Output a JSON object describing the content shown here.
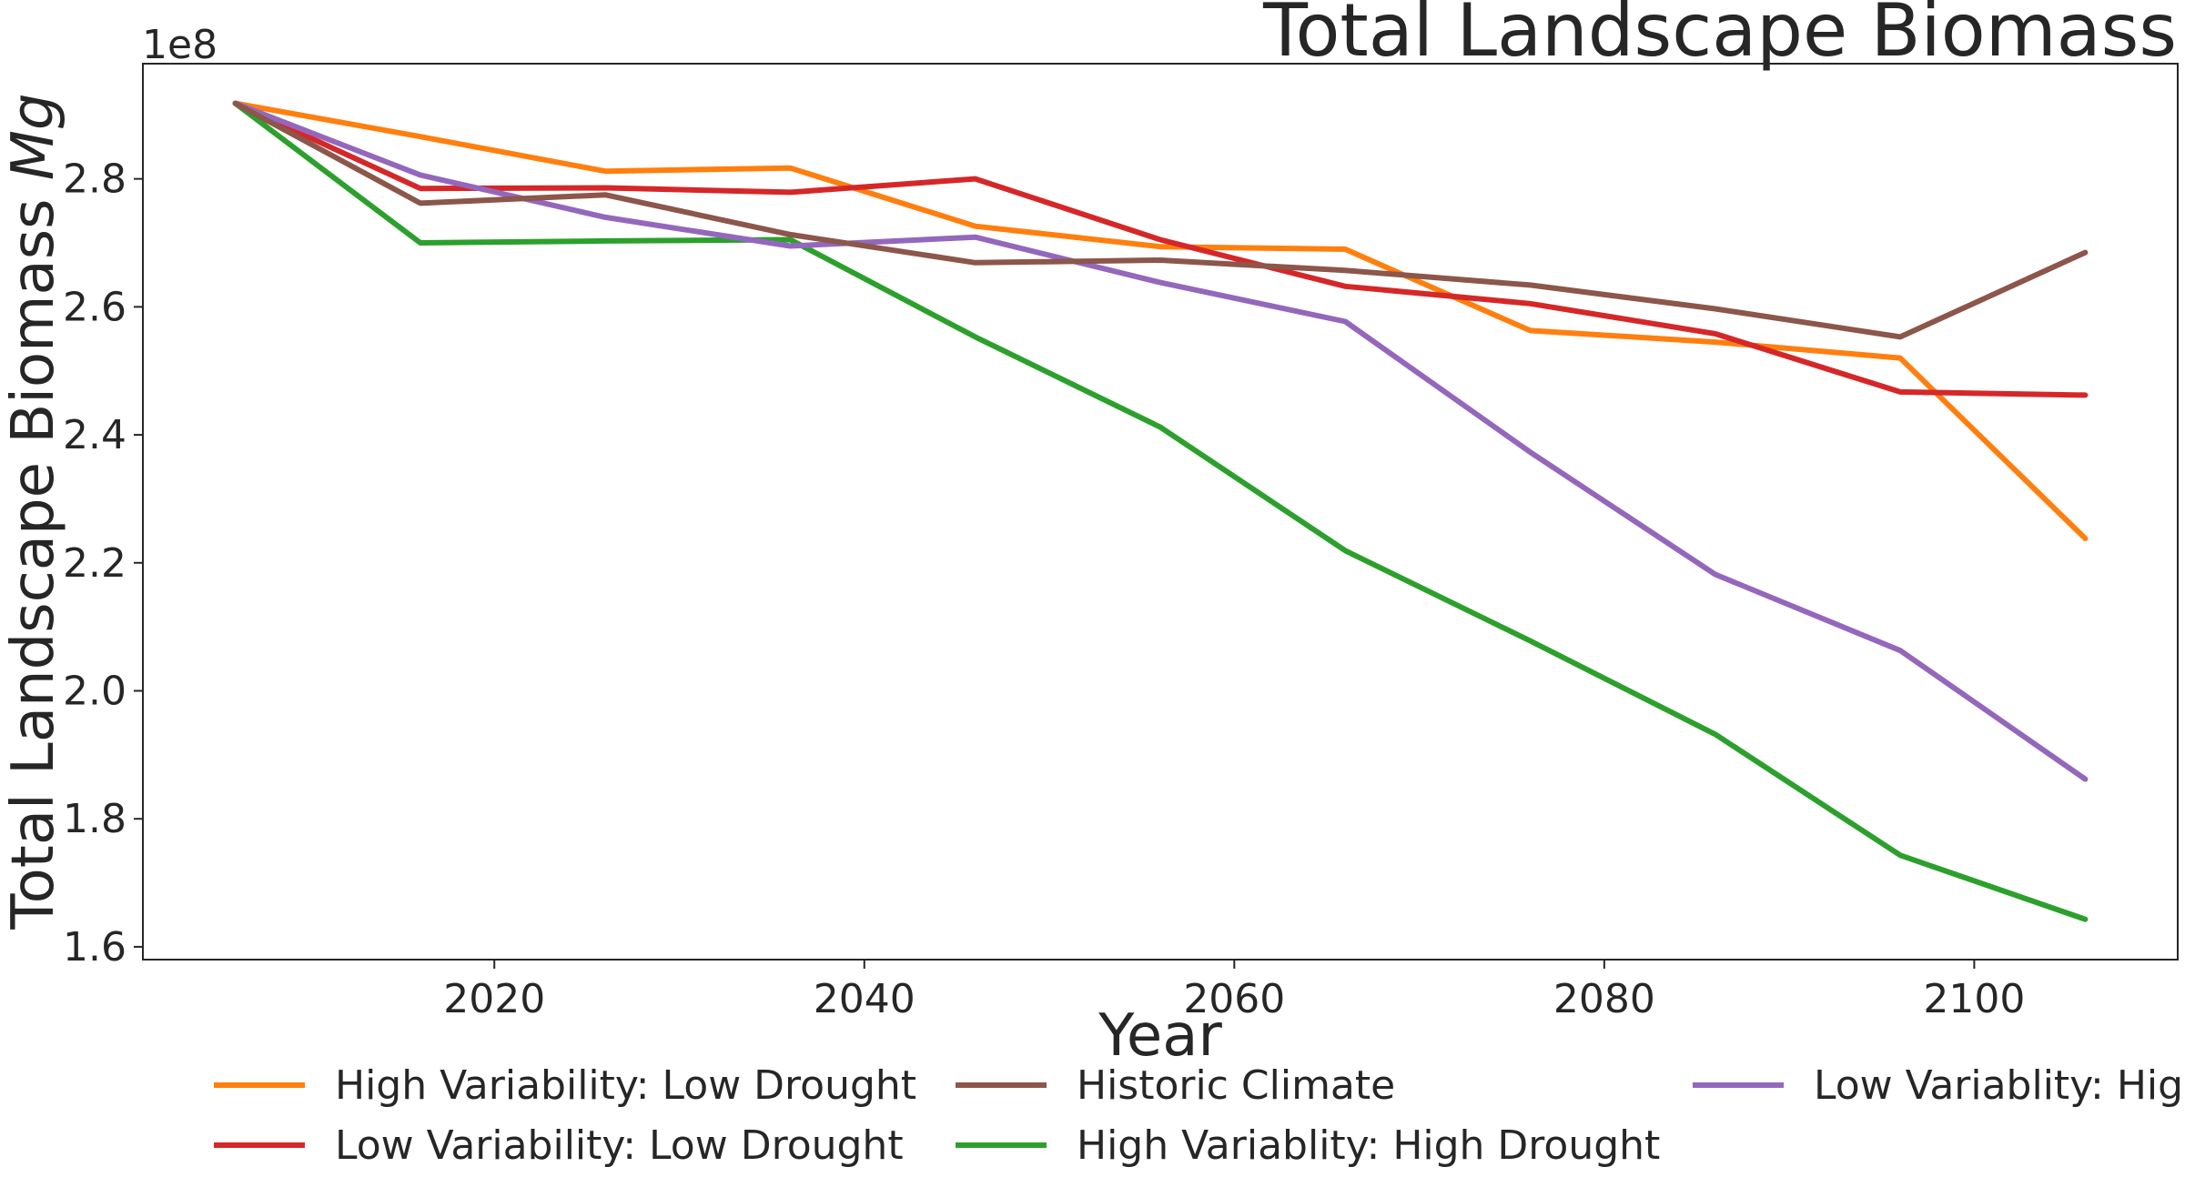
{
  "chart_data": {
    "type": "line",
    "title": "Total Landscape Biomass",
    "xlabel": "Year",
    "ylabel_main": "Total Landscape Biomass ",
    "ylabel_unit": "Mg",
    "offset_label": "1e8",
    "x": [
      2006,
      2016,
      2026,
      2036,
      2046,
      2056,
      2066,
      2076,
      2086,
      2096,
      2106
    ],
    "xlim": [
      2001,
      2111
    ],
    "ylim": [
      1.58,
      2.98
    ],
    "xticks": [
      2020,
      2040,
      2060,
      2080,
      2100
    ],
    "xtick_labels": [
      "2020",
      "2040",
      "2060",
      "2080",
      "2100"
    ],
    "yticks": [
      1.6,
      1.8,
      2.0,
      2.2,
      2.4,
      2.6,
      2.8
    ],
    "ytick_labels": [
      "1.6",
      "1.8",
      "2.0",
      "2.2",
      "2.4",
      "2.6",
      "2.8"
    ],
    "grid": false,
    "legend_position": "bottom",
    "series": [
      {
        "name": "High Variability: Low Drought",
        "color": "#ff7f0e",
        "values": [
          2.918,
          2.866,
          2.812,
          2.817,
          2.726,
          2.694,
          2.69,
          2.563,
          2.545,
          2.52,
          2.238
        ]
      },
      {
        "name": "High Variablity: High Drought",
        "color": "#2ca02c",
        "values": [
          2.918,
          2.7,
          2.703,
          2.705,
          2.553,
          2.412,
          2.219,
          2.078,
          1.932,
          1.743,
          1.643
        ]
      },
      {
        "name": "Low Variability: Low Drought",
        "color": "#d62728",
        "values": [
          2.918,
          2.785,
          2.786,
          2.779,
          2.8,
          2.705,
          2.632,
          2.605,
          2.558,
          2.467,
          2.462
        ]
      },
      {
        "name": "Low Variablity: High Drought",
        "color": "#9467bd",
        "values": [
          2.918,
          2.806,
          2.74,
          2.695,
          2.709,
          2.638,
          2.577,
          2.373,
          2.182,
          2.063,
          1.862
        ]
      },
      {
        "name": "Historic Climate",
        "color": "#8c564b",
        "values": [
          2.918,
          2.762,
          2.775,
          2.713,
          2.669,
          2.673,
          2.657,
          2.634,
          2.597,
          2.553,
          2.685
        ]
      }
    ]
  }
}
